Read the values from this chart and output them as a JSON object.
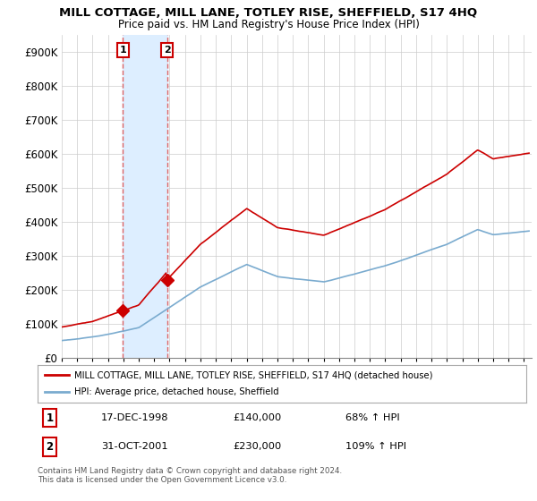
{
  "title": "MILL COTTAGE, MILL LANE, TOTLEY RISE, SHEFFIELD, S17 4HQ",
  "subtitle": "Price paid vs. HM Land Registry's House Price Index (HPI)",
  "ylim": [
    0,
    950000
  ],
  "yticks": [
    0,
    100000,
    200000,
    300000,
    400000,
    500000,
    600000,
    700000,
    800000,
    900000
  ],
  "ytick_labels": [
    "£0",
    "£100K",
    "£200K",
    "£300K",
    "£400K",
    "£500K",
    "£600K",
    "£700K",
    "£800K",
    "£900K"
  ],
  "xlim_start": 1995.0,
  "xlim_end": 2025.5,
  "property_color": "#cc0000",
  "hpi_color": "#7aabcf",
  "shade_color": "#ddeeff",
  "transaction1_price": 140000,
  "transaction1_year": 1998.96,
  "transaction2_price": 230000,
  "transaction2_year": 2001.83,
  "transaction1_date": "17-DEC-1998",
  "transaction2_date": "31-OCT-2001",
  "legend_property": "MILL COTTAGE, MILL LANE, TOTLEY RISE, SHEFFIELD, S17 4HQ (detached house)",
  "legend_hpi": "HPI: Average price, detached house, Sheffield",
  "footer": "Contains HM Land Registry data © Crown copyright and database right 2024.\nThis data is licensed under the Open Government Licence v3.0.",
  "background_color": "#ffffff",
  "grid_color": "#cccccc"
}
